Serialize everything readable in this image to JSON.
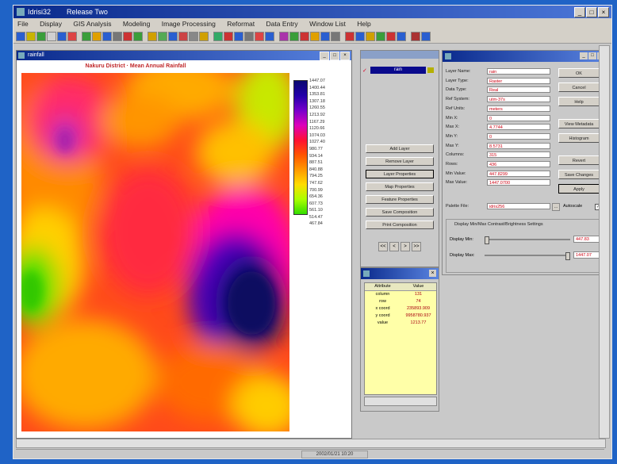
{
  "app": {
    "title": "Idrisi32",
    "subtitle": "Release Two",
    "title_buttons": [
      "_",
      "□",
      "×"
    ]
  },
  "menu": [
    "File",
    "Display",
    "GIS Analysis",
    "Modeling",
    "Image Processing",
    "Reformat",
    "Data Entry",
    "Window List",
    "Help"
  ],
  "toolbar_icon_colors": [
    "#2a5fd0",
    "#c8b400",
    "#3a9e3a",
    "#d0d0d0",
    "#2a5fd0",
    "#d44",
    "#3a9e3a",
    "#e0a000",
    "#2a5fd0",
    "#777",
    "#c33",
    "#3a9e3a",
    "#d0a000",
    "#5a5",
    "#2a5fd0",
    "#c44",
    "#888",
    "#d0a000",
    "#3a6",
    "#c33",
    "#2a5fd0",
    "#777",
    "#d44",
    "#2a5fd0",
    "#a3a",
    "#3a9e3a",
    "#c33",
    "#e0a000",
    "#2a5fd0",
    "#777",
    "#c33",
    "#2a5fd0",
    "#d0a000",
    "#3a9e3a",
    "#c33",
    "#2a5fd0",
    "#a33",
    "#2a5fd0"
  ],
  "map_window": {
    "title": "rainfall",
    "map_title": "Nakuru District · Mean Annual Rainfall",
    "legend_ticks": [
      "1447.07",
      "1400.44",
      "1353.81",
      "1307.18",
      "1260.55",
      "1213.92",
      "1167.29",
      "1120.66",
      "1074.03",
      "1027.40",
      "980.77",
      "934.14",
      "887.51",
      "840.88",
      "794.25",
      "747.62",
      "700.99",
      "654.36",
      "607.73",
      "561.10",
      "514.47",
      "467.84"
    ]
  },
  "layer_panel": {
    "layer_name": "rain",
    "buttons": [
      "Add Layer",
      "Remove Layer",
      "Layer Properties",
      "Map Properties",
      "Feature Properties",
      "Save Composition",
      "Print Composition"
    ],
    "nav": [
      "<<",
      "<",
      ">",
      ">>"
    ]
  },
  "info_window": {
    "headers": [
      "Attribute",
      "Value"
    ],
    "rows": [
      [
        "column",
        "131"
      ],
      [
        "row",
        "74"
      ],
      [
        "x coord",
        "235893.909"
      ],
      [
        "y coord",
        "9958780.937"
      ],
      [
        "value",
        "1213.77"
      ]
    ]
  },
  "properties": {
    "fields": [
      {
        "k": "Layer Name:",
        "v": "rain"
      },
      {
        "k": "Layer Type:",
        "v": "Raster"
      },
      {
        "k": "Data Type:",
        "v": "Real"
      },
      {
        "k": "Ref System:",
        "v": "utm-37s"
      },
      {
        "k": "Ref Units:",
        "v": "meters"
      },
      {
        "k": "Min X:",
        "v": "0"
      },
      {
        "k": "Max X:",
        "v": "4.7744"
      },
      {
        "k": "Min Y:",
        "v": "0"
      },
      {
        "k": "Max Y:",
        "v": "8.5731"
      },
      {
        "k": "Columns:",
        "v": "315"
      },
      {
        "k": "Rows:",
        "v": "436"
      },
      {
        "k": "Min Value:",
        "v": "447.8299"
      },
      {
        "k": "Max Value:",
        "v": "1447.0700"
      }
    ],
    "buttons": [
      "OK",
      "Cancel",
      "Help",
      "View Metadata",
      "Histogram",
      "Revert",
      "Save Changes",
      "Apply"
    ],
    "palette_label": "Palette File:",
    "palette_value": "idris256",
    "autoscale_label": "Autoscale",
    "contrast_group_label": "Display Min/Max Contrast/Brightness Settings",
    "display_min_label": "Display Min:",
    "display_min_value": "447.83",
    "display_max_label": "Display Max:",
    "display_max_value": "1447.07",
    "display_min_fraction": 0.0,
    "display_max_fraction": 1.0
  },
  "status_bar": {
    "text": "2002/01/21 10:20"
  }
}
